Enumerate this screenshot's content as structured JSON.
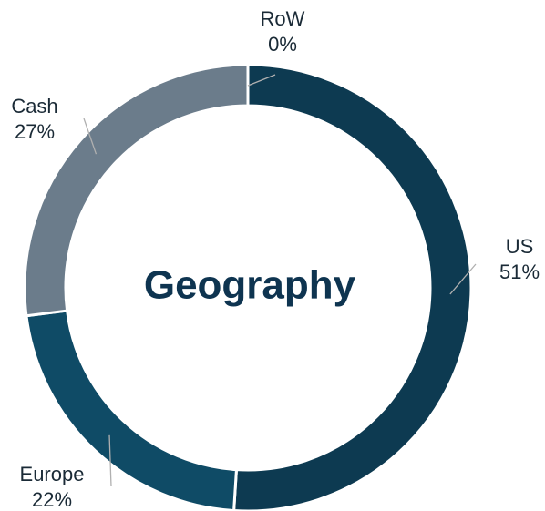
{
  "chart_data": {
    "type": "donut",
    "title": "Geography",
    "categories": [
      "US",
      "Europe",
      "Cash",
      "RoW"
    ],
    "values": [
      51,
      22,
      27,
      0
    ],
    "value_labels": [
      "51%",
      "22%",
      "27%",
      "0%"
    ],
    "colors": [
      "#0d3a51",
      "#0f4b66",
      "#6b7c8b",
      "#c3cbd3"
    ]
  }
}
